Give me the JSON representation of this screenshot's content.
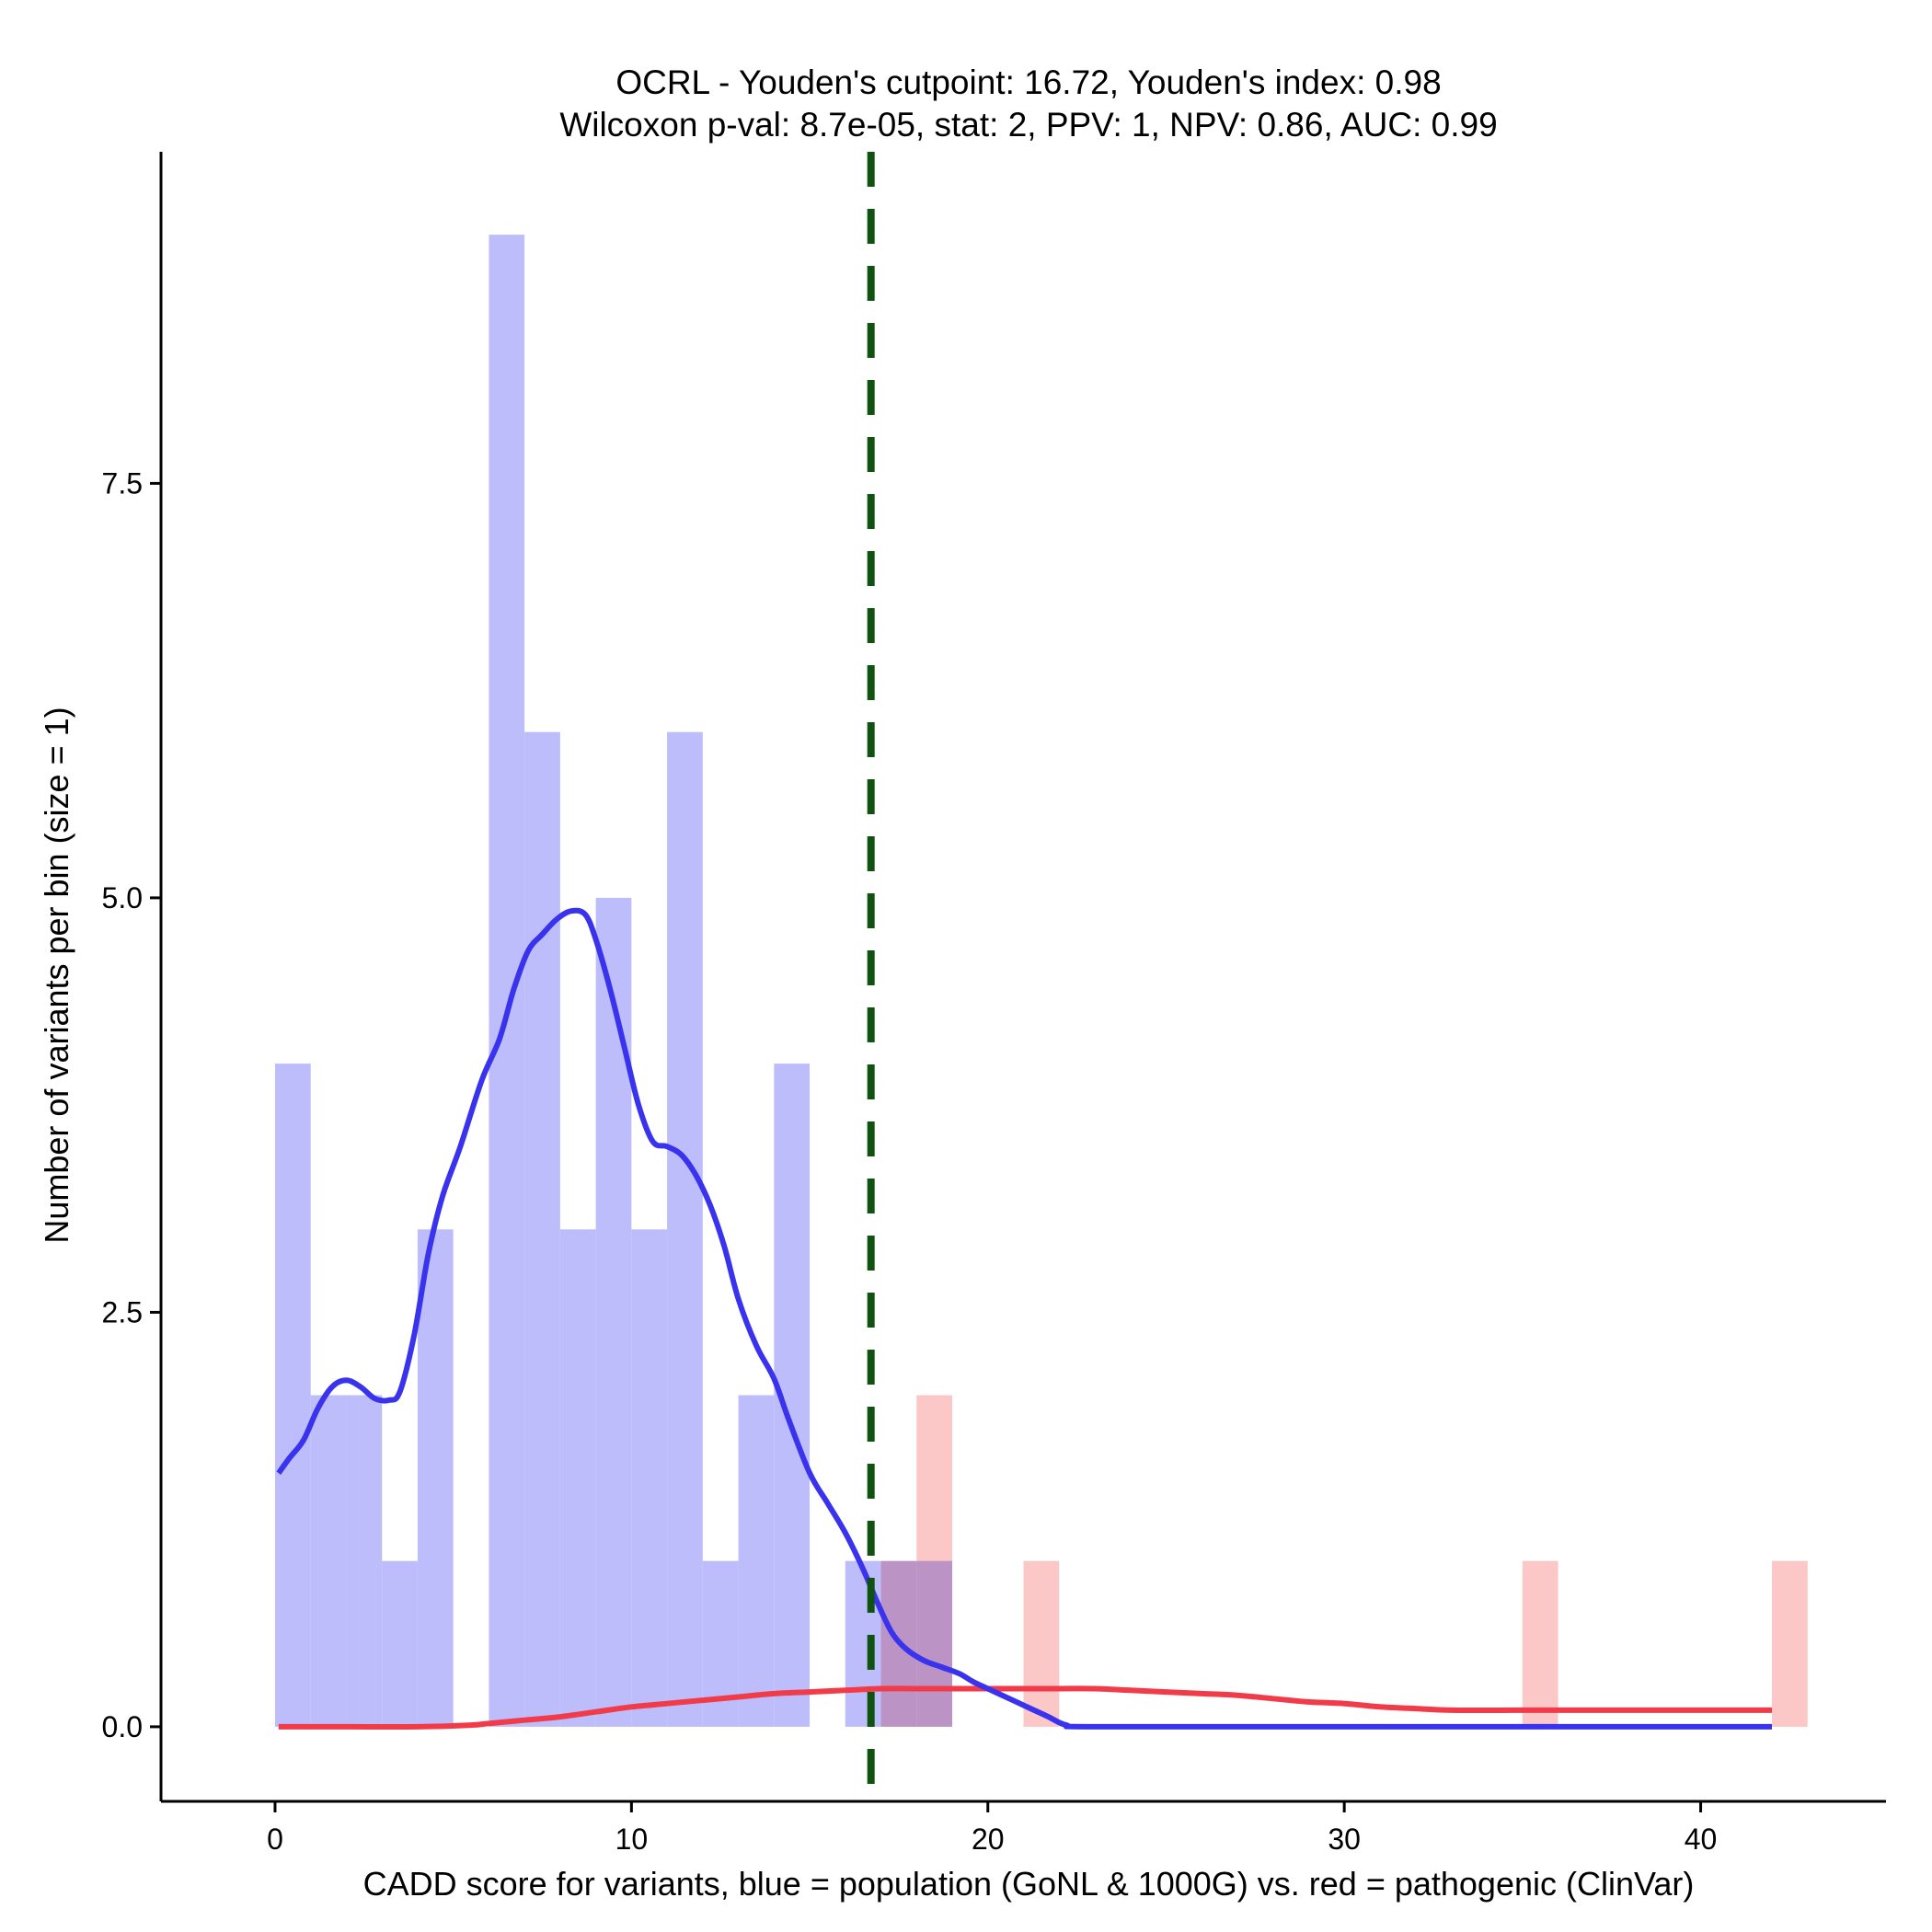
{
  "chart_data": {
    "type": "bar",
    "title_line1": "OCRL - Youden's cutpoint: 16.72, Youden's index: 0.98",
    "title_line2": "Wilcoxon p-val: 8.7e-05, stat: 2, PPV: 1, NPV: 0.86, AUC: 0.99",
    "xlabel": "CADD score for variants, blue = population (GoNL & 1000G) vs. red = pathogenic (ClinVar)",
    "ylabel": "Number of variants per bin (size = 1)",
    "xlim": [
      -3.2,
      45.2
    ],
    "ylim": [
      -0.45,
      9.5
    ],
    "x_ticks": [
      0,
      10,
      20,
      30,
      40
    ],
    "x_tick_labels": [
      "0",
      "10",
      "20",
      "30",
      "40"
    ],
    "y_ticks": [
      0,
      2.5,
      5,
      7.5
    ],
    "y_tick_labels": [
      "0.0",
      "2.5",
      "5.0",
      "7.5"
    ],
    "cutpoint": 16.72,
    "bin_size": 1,
    "colors": {
      "population_bar": "#bdbdfc",
      "pathogenic_bar": "#fcbdbd",
      "population_line": "#3a33ee",
      "pathogenic_line": "#f23b48",
      "cutpoint_line": "#0e5410"
    },
    "series": [
      {
        "name": "population (GoNL & 1000G)",
        "bins": [
          {
            "start": 0,
            "end": 1,
            "value": 4
          },
          {
            "start": 1,
            "end": 2,
            "value": 2
          },
          {
            "start": 2,
            "end": 3,
            "value": 2
          },
          {
            "start": 3,
            "end": 4,
            "value": 1
          },
          {
            "start": 4,
            "end": 5,
            "value": 3
          },
          {
            "start": 6,
            "end": 7,
            "value": 9
          },
          {
            "start": 7,
            "end": 8,
            "value": 6
          },
          {
            "start": 8,
            "end": 9,
            "value": 3
          },
          {
            "start": 9,
            "end": 10,
            "value": 5
          },
          {
            "start": 10,
            "end": 11,
            "value": 3
          },
          {
            "start": 11,
            "end": 12,
            "value": 6
          },
          {
            "start": 12,
            "end": 13,
            "value": 1
          },
          {
            "start": 13,
            "end": 14,
            "value": 2
          },
          {
            "start": 14,
            "end": 15,
            "value": 4
          },
          {
            "start": 16,
            "end": 17,
            "value": 1
          },
          {
            "start": 17,
            "end": 18,
            "value": 1
          },
          {
            "start": 18,
            "end": 19,
            "value": 1
          }
        ],
        "density_curve": [
          [
            0.1,
            1.53
          ],
          [
            0.4,
            1.62
          ],
          [
            0.8,
            1.73
          ],
          [
            1.2,
            1.92
          ],
          [
            1.6,
            2.05
          ],
          [
            2.0,
            2.09
          ],
          [
            2.4,
            2.05
          ],
          [
            2.8,
            1.98
          ],
          [
            3.2,
            1.97
          ],
          [
            3.5,
            2.02
          ],
          [
            3.9,
            2.36
          ],
          [
            4.3,
            2.85
          ],
          [
            4.7,
            3.2
          ],
          [
            5.2,
            3.5
          ],
          [
            5.8,
            3.9
          ],
          [
            6.3,
            4.15
          ],
          [
            6.7,
            4.45
          ],
          [
            7.1,
            4.68
          ],
          [
            7.5,
            4.78
          ],
          [
            7.9,
            4.87
          ],
          [
            8.3,
            4.92
          ],
          [
            8.7,
            4.9
          ],
          [
            9.0,
            4.75
          ],
          [
            9.4,
            4.45
          ],
          [
            9.8,
            4.1
          ],
          [
            10.2,
            3.75
          ],
          [
            10.6,
            3.53
          ],
          [
            11.0,
            3.5
          ],
          [
            11.4,
            3.45
          ],
          [
            11.8,
            3.33
          ],
          [
            12.2,
            3.15
          ],
          [
            12.6,
            2.9
          ],
          [
            13.0,
            2.58
          ],
          [
            13.5,
            2.3
          ],
          [
            14.0,
            2.1
          ],
          [
            14.4,
            1.86
          ],
          [
            15.0,
            1.53
          ],
          [
            15.5,
            1.35
          ],
          [
            16.0,
            1.17
          ],
          [
            16.5,
            0.95
          ],
          [
            16.9,
            0.75
          ],
          [
            17.3,
            0.57
          ],
          [
            17.7,
            0.47
          ],
          [
            18.2,
            0.4
          ],
          [
            18.7,
            0.36
          ],
          [
            19.2,
            0.32
          ],
          [
            19.6,
            0.27
          ],
          [
            20.1,
            0.22
          ],
          [
            20.6,
            0.17
          ],
          [
            21.2,
            0.11
          ],
          [
            21.7,
            0.06
          ],
          [
            22.2,
            0.01
          ],
          [
            23.0,
            0.0
          ],
          [
            30.0,
            0.0
          ],
          [
            42.0,
            0.0
          ]
        ]
      },
      {
        "name": "pathogenic (ClinVar)",
        "bins": [
          {
            "start": 17,
            "end": 18,
            "value": 1
          },
          {
            "start": 18,
            "end": 19,
            "value": 2
          },
          {
            "start": 21,
            "end": 22,
            "value": 1
          },
          {
            "start": 35,
            "end": 36,
            "value": 1
          },
          {
            "start": 42,
            "end": 43,
            "value": 1
          }
        ],
        "density_curve": [
          [
            0.1,
            0.0
          ],
          [
            2.0,
            0.0
          ],
          [
            4.0,
            0.0
          ],
          [
            5.5,
            0.01
          ],
          [
            6.0,
            0.02
          ],
          [
            7.0,
            0.04
          ],
          [
            8.0,
            0.06
          ],
          [
            9.0,
            0.09
          ],
          [
            10.0,
            0.12
          ],
          [
            11.0,
            0.14
          ],
          [
            12.0,
            0.16
          ],
          [
            13.0,
            0.18
          ],
          [
            14.0,
            0.2
          ],
          [
            15.0,
            0.21
          ],
          [
            16.0,
            0.22
          ],
          [
            17.0,
            0.23
          ],
          [
            18.0,
            0.23
          ],
          [
            19.0,
            0.23
          ],
          [
            20.0,
            0.23
          ],
          [
            21.0,
            0.23
          ],
          [
            22.0,
            0.23
          ],
          [
            23.0,
            0.23
          ],
          [
            24.0,
            0.22
          ],
          [
            25.0,
            0.21
          ],
          [
            26.0,
            0.2
          ],
          [
            27.0,
            0.19
          ],
          [
            28.0,
            0.17
          ],
          [
            29.0,
            0.15
          ],
          [
            30.0,
            0.14
          ],
          [
            31.0,
            0.12
          ],
          [
            32.0,
            0.11
          ],
          [
            33.0,
            0.1
          ],
          [
            35.0,
            0.1
          ],
          [
            37.0,
            0.1
          ],
          [
            39.0,
            0.1
          ],
          [
            42.0,
            0.1
          ]
        ]
      }
    ]
  }
}
